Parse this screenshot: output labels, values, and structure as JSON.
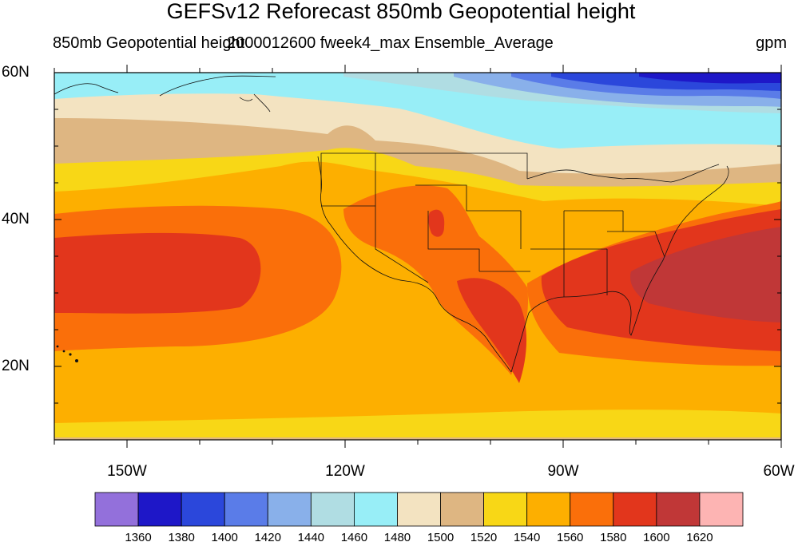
{
  "title": "GEFSv12 Reforecast 850mb Geopotential height",
  "subtitle": {
    "left": "850mb Geopotential height",
    "center": "2000012600 fweek4_max Ensemble_Average",
    "right": "gpm"
  },
  "map": {
    "projection": "cylindrical equidistant",
    "lon_range": [
      -160,
      -60
    ],
    "lat_range": [
      10,
      60
    ],
    "lat_tick_labels": [
      {
        "lat": 60,
        "label": "60N"
      },
      {
        "lat": 40,
        "label": "40N"
      },
      {
        "lat": 20,
        "label": "20N"
      }
    ],
    "lon_tick_labels": [
      {
        "lon": -150,
        "label": "150W"
      },
      {
        "lon": -120,
        "label": "120W"
      },
      {
        "lon": -90,
        "label": "90W"
      },
      {
        "lon": -60,
        "label": "60W"
      }
    ]
  },
  "colorbar": {
    "labels": [
      "1360",
      "1380",
      "1400",
      "1420",
      "1440",
      "1460",
      "1480",
      "1500",
      "1520",
      "1540",
      "1560",
      "1580",
      "1600",
      "1620"
    ],
    "colors": [
      "#9370DB",
      "#1E17C8",
      "#2B47DB",
      "#5A7CE8",
      "#89B0EA",
      "#B0DDE3",
      "#98EEF7",
      "#F3E3C1",
      "#DEB682",
      "#F8D716",
      "#FDAF00",
      "#FA6F0A",
      "#E2361C",
      "#C03737",
      "#FDB4B3"
    ]
  }
}
